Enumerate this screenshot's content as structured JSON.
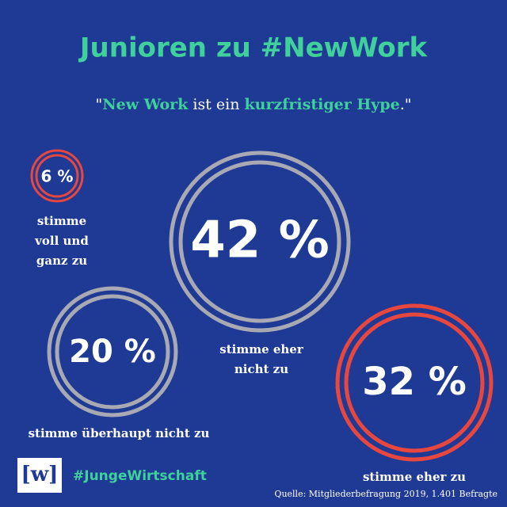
{
  "header": {
    "title": "Junioren zu #NewWork"
  },
  "quote": {
    "open": "\"",
    "term": "New Work",
    "middle": " ist ein ",
    "claim": "kurzfristiger Hype",
    "close": ".\""
  },
  "items": [
    {
      "value": "6 %",
      "label": [
        "stimme",
        "voll und",
        "ganz zu"
      ]
    },
    {
      "value": "42 %",
      "label": [
        "stimme eher",
        "nicht zu"
      ]
    },
    {
      "value": "20 %",
      "label": [
        "stimme überhaupt nicht zu"
      ]
    },
    {
      "value": "32 %",
      "label": [
        "stimme eher zu"
      ]
    }
  ],
  "footer": {
    "logo": "[w]",
    "hashtag": "#JungeWirtschaft",
    "source": "Quelle: Mitgliederbefragung 2019, 1.401 Befragte"
  }
}
